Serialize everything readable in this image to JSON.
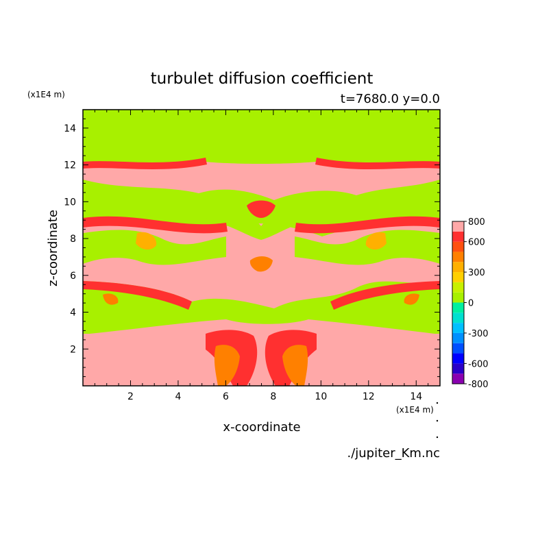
{
  "chart_data": {
    "type": "heatmap",
    "title": "turbulet diffusion coefficient",
    "subtitle": "t=7680.0 y=0.0",
    "xlabel": "x-coordinate",
    "ylabel": "z-coordinate",
    "x_unit": "(x1E4 m)",
    "y_unit": "(x1E4 m)",
    "xlim": [
      0.0,
      15.0
    ],
    "ylim": [
      0.0,
      15.0
    ],
    "x_ticks": [
      2,
      4,
      6,
      8,
      10,
      12,
      14
    ],
    "y_ticks": [
      2,
      4,
      6,
      8,
      10,
      12,
      14
    ],
    "x_tick_labels": [
      "2",
      "4",
      "6",
      "8",
      "10",
      "12",
      "14"
    ],
    "y_tick_labels": [
      "2",
      "4",
      "6",
      "8",
      "10",
      "12",
      "14"
    ],
    "colorbar": {
      "levels": [
        -800,
        -700,
        -600,
        -500,
        -400,
        -300,
        -200,
        -100,
        0,
        100,
        200,
        300,
        400,
        500,
        600,
        700,
        800
      ],
      "labels": [
        "800",
        "600",
        "300",
        "0",
        "-300",
        "-600",
        "-800"
      ],
      "label_values": [
        800,
        600,
        300,
        0,
        -300,
        -600,
        -800
      ],
      "colors": [
        "#8a00b0",
        "#2a00c8",
        "#0000ff",
        "#0050ff",
        "#0090ff",
        "#00c0ff",
        "#00e0d0",
        "#00f0a0",
        "#a8f000",
        "#c8f000",
        "#ffd000",
        "#ffb000",
        "#ff8000",
        "#ff5010",
        "#ff3030",
        "#ffa8a8"
      ]
    },
    "dominant_levels": {
      "upper_region": "0 to 100",
      "lower_region": "700 to 800"
    }
  },
  "footer": {
    "source": "./jupiter_Km.nc"
  }
}
